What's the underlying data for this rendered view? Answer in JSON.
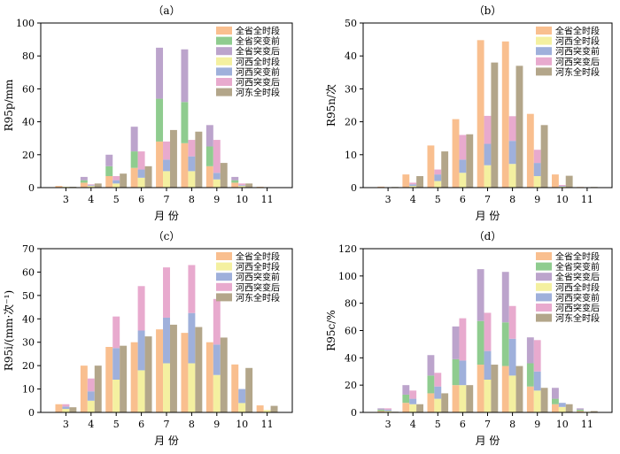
{
  "chart_data": [
    {
      "type": "bar",
      "panel": "（a）",
      "xlabel": "月 份",
      "ylabel": "R95p/mm",
      "ylim": [
        0,
        100
      ],
      "yticks": [
        0,
        20,
        40,
        60,
        80,
        100
      ],
      "categories": [
        "3",
        "4",
        "5",
        "6",
        "7",
        "8",
        "9",
        "10",
        "11"
      ],
      "legend_position": "top-right",
      "groups": [
        {
          "stack": [
            {
              "name": "全省全时段",
              "color": "#f9bf8f",
              "values": [
                1,
                3,
                7,
                12,
                28,
                27,
                13,
                3,
                0.5
              ]
            },
            {
              "name": "全省突变前",
              "color": "#8fcc8f",
              "values": [
                0,
                1.5,
                6,
                10,
                26,
                25,
                12,
                1.5,
                0
              ]
            },
            {
              "name": "全省突变后",
              "color": "#bca4cc",
              "values": [
                0,
                2,
                7,
                15,
                31,
                32,
                13,
                2,
                0
              ]
            }
          ]
        },
        {
          "stack": [
            {
              "name": "河西全时段",
              "color": "#f4f0a0",
              "values": [
                0.5,
                1,
                2.5,
                6,
                10,
                10,
                5,
                1,
                0
              ]
            },
            {
              "name": "河西突变前",
              "color": "#9fb0db",
              "values": [
                0,
                0.5,
                2,
                5,
                7,
                9,
                4,
                0.5,
                0
              ]
            },
            {
              "name": "河西突变后",
              "color": "#e8aace",
              "values": [
                0,
                0.5,
                2.5,
                11,
                11,
                10,
                20,
                1,
                0
              ]
            }
          ]
        },
        {
          "stack": [
            {
              "name": "河东全时段",
              "color": "#b3a68a",
              "values": [
                0.5,
                2.5,
                8.5,
                13,
                35,
                34,
                15,
                2.5,
                0
              ]
            }
          ]
        }
      ]
    },
    {
      "type": "bar",
      "panel": "（b）",
      "xlabel": "月 份",
      "ylabel": "R95n/次",
      "ylim": [
        0,
        50
      ],
      "yticks": [
        0,
        10,
        20,
        30,
        40,
        50
      ],
      "categories": [
        "3",
        "4",
        "5",
        "6",
        "7",
        "8",
        "9",
        "10",
        "11"
      ],
      "legend_position": "top-right",
      "groups": [
        {
          "stack": [
            {
              "name": "全省全时段",
              "color": "#f9bf8f",
              "values": [
                0.3,
                4,
                12.8,
                20.8,
                44.8,
                44.4,
                22.4,
                4,
                0.2
              ]
            }
          ]
        },
        {
          "stack": [
            {
              "name": "河西全时段",
              "color": "#f4f0a0",
              "values": [
                0.1,
                0.5,
                2,
                4.5,
                6.8,
                7.2,
                3.5,
                0.3,
                0
              ]
            },
            {
              "name": "河西突变前",
              "color": "#9fb0db",
              "values": [
                0,
                0.5,
                2,
                4,
                6.5,
                7,
                4,
                0.2,
                0
              ]
            },
            {
              "name": "河西突变后",
              "color": "#e8aace",
              "values": [
                0,
                0.5,
                1.5,
                7.5,
                8.5,
                7.5,
                4,
                0.3,
                0
              ]
            }
          ]
        },
        {
          "stack": [
            {
              "name": "河东全时段",
              "color": "#b3a68a",
              "values": [
                0.2,
                3.5,
                11,
                16.2,
                38,
                37,
                19,
                3.6,
                0.2
              ]
            }
          ]
        }
      ]
    },
    {
      "type": "bar",
      "panel": "（c）",
      "xlabel": "月 份",
      "ylabel": "R95i/(mm·次⁻¹)",
      "ylim": [
        0,
        70
      ],
      "yticks": [
        0,
        10,
        20,
        30,
        40,
        50,
        60,
        70
      ],
      "categories": [
        "3",
        "4",
        "5",
        "6",
        "7",
        "8",
        "9",
        "10",
        "11"
      ],
      "legend_position": "top-right",
      "groups": [
        {
          "stack": [
            {
              "name": "全省全时段",
              "color": "#f9bf8f",
              "values": [
                3.5,
                20,
                28,
                30,
                35.5,
                34,
                30,
                20.5,
                3
              ]
            }
          ]
        },
        {
          "stack": [
            {
              "name": "河西全时段",
              "color": "#f4f0a0",
              "values": [
                1.5,
                5,
                14,
                18,
                21,
                21,
                16,
                4,
                1
              ]
            },
            {
              "name": "河西突变前",
              "color": "#9fb0db",
              "values": [
                1,
                4,
                13.5,
                17,
                19.5,
                21.5,
                13,
                6,
                0
              ]
            },
            {
              "name": "河西突变后",
              "color": "#e8aace",
              "values": [
                1,
                5.5,
                13.5,
                19,
                21.5,
                20.5,
                19.5,
                0,
                0
              ]
            }
          ]
        },
        {
          "stack": [
            {
              "name": "河东全时段",
              "color": "#b3a68a",
              "values": [
                2.2,
                20,
                28.5,
                32.5,
                37.5,
                36.5,
                32,
                19,
                2.8
              ]
            }
          ]
        }
      ]
    },
    {
      "type": "bar",
      "panel": "（d）",
      "xlabel": "月 份",
      "ylabel": "R95c/%",
      "ylim": [
        0,
        120
      ],
      "yticks": [
        0,
        20,
        40,
        60,
        80,
        100,
        120
      ],
      "categories": [
        "3",
        "4",
        "5",
        "6",
        "7",
        "8",
        "9",
        "10",
        "11"
      ],
      "legend_position": "top-right",
      "groups": [
        {
          "stack": [
            {
              "name": "全省全时段",
              "color": "#f9bf8f",
              "values": [
                1,
                7,
                14,
                20,
                35,
                34,
                19,
                6,
                1
              ]
            },
            {
              "name": "全省突变前",
              "color": "#8fcc8f",
              "values": [
                1,
                6,
                13,
                19,
                32,
                32,
                17,
                4,
                1
              ]
            },
            {
              "name": "全省突变后",
              "color": "#bca4cc",
              "values": [
                1,
                7,
                15,
                24,
                38,
                37,
                19,
                8,
                1
              ]
            }
          ]
        },
        {
          "stack": [
            {
              "name": "河西全时段",
              "color": "#f4f0a0",
              "values": [
                1,
                6,
                10,
                20,
                24,
                27,
                16,
                4,
                0.5
              ]
            },
            {
              "name": "河西突变前",
              "color": "#9fb0db",
              "values": [
                1,
                4,
                9,
                18,
                21,
                27,
                14,
                3,
                0
              ]
            },
            {
              "name": "河西突变后",
              "color": "#e8aace",
              "values": [
                1,
                6,
                10,
                31,
                28,
                24,
                23,
                0,
                0
              ]
            }
          ]
        },
        {
          "stack": [
            {
              "name": "河东全时段",
              "color": "#b3a68a",
              "values": [
                0.5,
                6,
                14,
                20,
                35,
                34,
                18,
                6,
                1
              ]
            }
          ]
        }
      ]
    }
  ]
}
